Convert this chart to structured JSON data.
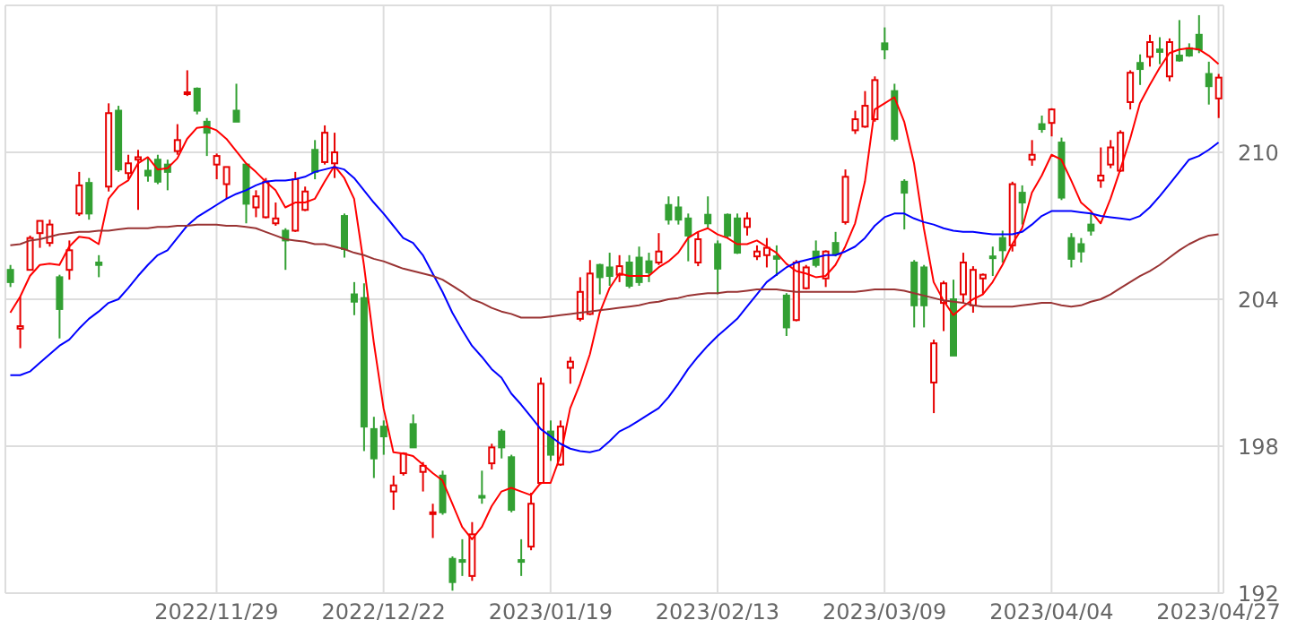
{
  "chart_data": {
    "type": "candlestick",
    "categories": [
      null,
      null,
      null,
      null,
      null,
      null,
      null,
      null,
      null,
      null,
      null,
      null,
      null,
      null,
      null,
      null,
      null,
      null,
      null,
      null,
      null,
      "2022/11/29",
      null,
      null,
      null,
      null,
      null,
      null,
      null,
      null,
      null,
      null,
      null,
      null,
      null,
      null,
      null,
      null,
      "2022/12/22",
      null,
      null,
      null,
      null,
      null,
      null,
      null,
      null,
      null,
      null,
      null,
      null,
      null,
      null,
      null,
      null,
      "2023/01/19",
      null,
      null,
      null,
      null,
      null,
      null,
      null,
      null,
      null,
      null,
      null,
      null,
      null,
      null,
      null,
      null,
      "2023/02/13",
      null,
      null,
      null,
      null,
      null,
      null,
      null,
      null,
      null,
      null,
      null,
      null,
      null,
      null,
      null,
      null,
      "2023/03/09",
      null,
      null,
      null,
      null,
      null,
      null,
      null,
      null,
      null,
      null,
      null,
      null,
      null,
      null,
      null,
      null,
      "2023/04/04",
      null,
      null,
      null,
      null,
      null,
      null,
      null,
      null,
      null,
      null,
      null,
      null,
      null,
      null,
      null,
      null,
      "2023/04/27"
    ],
    "ohlc": [
      [
        205.2,
        205.4,
        204.5,
        204.7
      ],
      [
        202.8,
        204.1,
        202.0,
        202.9
      ],
      [
        205.2,
        206.6,
        205.2,
        206.5
      ],
      [
        206.7,
        207.2,
        206.1,
        207.2
      ],
      [
        206.3,
        207.25,
        206.15,
        207.05
      ],
      [
        204.9,
        205.0,
        202.4,
        203.6
      ],
      [
        205.2,
        206.4,
        204.8,
        206.0
      ],
      [
        207.5,
        209.2,
        207.4,
        208.65
      ],
      [
        208.75,
        208.95,
        207.25,
        207.5
      ],
      [
        205.5,
        205.8,
        204.9,
        205.4
      ],
      [
        208.6,
        212.0,
        208.4,
        211.6
      ],
      [
        211.7,
        211.9,
        209.2,
        209.3
      ],
      [
        209.15,
        209.9,
        208.9,
        209.55
      ],
      [
        209.7,
        210.1,
        207.65,
        209.8
      ],
      [
        209.25,
        209.8,
        208.8,
        209.05
      ],
      [
        209.7,
        209.9,
        208.7,
        208.8
      ],
      [
        209.5,
        209.7,
        208.45,
        209.2
      ],
      [
        210.05,
        211.15,
        209.9,
        210.5
      ],
      [
        212.4,
        213.35,
        212.3,
        212.45
      ],
      [
        212.6,
        212.65,
        211.55,
        211.7
      ],
      [
        211.25,
        211.4,
        209.85,
        210.8
      ],
      [
        209.5,
        209.95,
        208.9,
        209.85
      ],
      [
        208.7,
        209.4,
        208.1,
        209.4
      ],
      [
        211.7,
        212.8,
        211.25,
        211.25
      ],
      [
        209.5,
        209.5,
        207.1,
        207.9
      ],
      [
        207.75,
        208.45,
        207.35,
        208.2
      ],
      [
        207.35,
        208.95,
        207.3,
        208.8
      ],
      [
        207.1,
        207.95,
        207.0,
        207.3
      ],
      [
        206.8,
        206.9,
        205.2,
        206.4
      ],
      [
        206.8,
        209.2,
        206.75,
        208.9
      ],
      [
        207.65,
        208.6,
        207.6,
        208.4
      ],
      [
        210.1,
        210.5,
        208.9,
        209.2
      ],
      [
        209.6,
        211.1,
        209.5,
        210.8
      ],
      [
        209.55,
        210.8,
        208.95,
        210.0
      ],
      [
        207.4,
        207.5,
        205.7,
        206.05
      ],
      [
        204.2,
        204.7,
        203.35,
        203.9
      ],
      [
        204.05,
        204.65,
        197.8,
        198.8
      ],
      [
        198.7,
        199.2,
        196.7,
        197.5
      ],
      [
        198.8,
        199.05,
        197.65,
        198.4
      ],
      [
        196.15,
        196.8,
        195.4,
        196.4
      ],
      [
        196.9,
        197.75,
        196.8,
        197.7
      ],
      [
        198.9,
        199.3,
        197.95,
        197.95
      ],
      [
        196.95,
        197.35,
        196.15,
        197.2
      ],
      [
        195.25,
        195.65,
        194.25,
        195.3
      ],
      [
        196.8,
        197.0,
        195.2,
        195.3
      ],
      [
        193.4,
        193.5,
        192.1,
        192.45
      ],
      [
        193.35,
        194.2,
        192.7,
        193.3
      ],
      [
        192.7,
        194.9,
        192.5,
        194.4
      ],
      [
        195.97,
        197.0,
        195.65,
        195.95
      ],
      [
        197.3,
        198.1,
        197.05,
        197.95
      ],
      [
        198.6,
        198.7,
        197.5,
        197.95
      ],
      [
        197.55,
        197.65,
        195.3,
        195.4
      ],
      [
        193.35,
        194.2,
        192.7,
        193.3
      ],
      [
        193.9,
        196.1,
        193.75,
        195.65
      ],
      [
        196.5,
        200.8,
        196.45,
        200.55
      ],
      [
        198.6,
        199.05,
        197.4,
        197.65
      ],
      [
        197.25,
        199.05,
        197.2,
        198.8
      ],
      [
        201.2,
        201.65,
        200.55,
        201.45
      ],
      [
        203.2,
        204.9,
        203.1,
        204.3
      ],
      [
        203.4,
        205.6,
        203.35,
        205.05
      ],
      [
        205.4,
        205.45,
        204.2,
        204.9
      ],
      [
        205.3,
        205.9,
        204.55,
        204.95
      ],
      [
        205.0,
        205.8,
        204.7,
        205.35
      ],
      [
        205.5,
        205.8,
        204.45,
        204.55
      ],
      [
        205.7,
        206.15,
        204.55,
        204.7
      ],
      [
        205.55,
        205.9,
        204.7,
        205.1
      ],
      [
        205.5,
        206.7,
        205.4,
        205.95
      ],
      [
        207.85,
        208.2,
        207.05,
        207.25
      ],
      [
        207.75,
        208.2,
        207.05,
        207.25
      ],
      [
        207.3,
        207.5,
        205.55,
        206.6
      ],
      [
        205.5,
        206.75,
        205.35,
        206.45
      ],
      [
        207.45,
        208.2,
        206.9,
        207.1
      ],
      [
        206.25,
        206.4,
        204.2,
        205.25
      ],
      [
        207.45,
        207.5,
        206.5,
        206.6
      ],
      [
        207.3,
        207.5,
        205.85,
        205.9
      ],
      [
        206.95,
        207.55,
        206.6,
        207.3
      ],
      [
        205.75,
        206.2,
        205.6,
        205.95
      ],
      [
        205.8,
        206.5,
        205.3,
        206.1
      ],
      [
        205.75,
        206.2,
        204.95,
        205.65
      ],
      [
        204.15,
        204.25,
        202.5,
        202.85
      ],
      [
        203.15,
        205.6,
        203.1,
        205.5
      ],
      [
        204.45,
        205.4,
        204.4,
        205.3
      ],
      [
        205.95,
        206.4,
        205.3,
        205.4
      ],
      [
        204.85,
        206.0,
        204.5,
        205.95
      ],
      [
        206.3,
        206.75,
        205.75,
        205.85
      ],
      [
        207.15,
        209.3,
        207.05,
        209.0
      ],
      [
        210.9,
        211.7,
        210.75,
        211.35
      ],
      [
        211.05,
        212.5,
        211.0,
        211.9
      ],
      [
        211.35,
        213.1,
        211.25,
        212.95
      ],
      [
        214.45,
        215.1,
        213.8,
        214.2
      ],
      [
        212.5,
        212.8,
        210.45,
        210.55
      ],
      [
        208.8,
        208.9,
        206.85,
        208.35
      ],
      [
        205.5,
        205.6,
        202.85,
        203.75
      ],
      [
        205.3,
        205.4,
        202.85,
        203.75
      ],
      [
        200.6,
        202.35,
        199.35,
        202.2
      ],
      [
        203.85,
        204.75,
        202.7,
        204.65
      ],
      [
        204.0,
        204.8,
        201.7,
        201.7
      ],
      [
        204.2,
        205.9,
        203.85,
        205.5
      ],
      [
        203.75,
        205.35,
        203.45,
        205.2
      ],
      [
        204.85,
        205.05,
        204.2,
        205.0
      ],
      [
        205.75,
        206.15,
        204.95,
        205.7
      ],
      [
        206.5,
        206.8,
        205.5,
        206.0
      ],
      [
        206.2,
        208.8,
        205.95,
        208.7
      ],
      [
        208.35,
        208.65,
        207.05,
        207.95
      ],
      [
        209.7,
        210.5,
        209.45,
        209.9
      ],
      [
        211.15,
        211.5,
        210.8,
        210.95
      ],
      [
        211.2,
        211.8,
        210.65,
        211.75
      ],
      [
        210.4,
        210.6,
        208.05,
        208.15
      ],
      [
        206.5,
        206.7,
        205.3,
        205.65
      ],
      [
        206.25,
        206.5,
        205.5,
        205.95
      ],
      [
        207.05,
        207.5,
        206.6,
        206.8
      ],
      [
        208.85,
        210.2,
        208.55,
        209.05
      ],
      [
        209.5,
        210.5,
        209.35,
        210.2
      ],
      [
        209.25,
        210.9,
        209.2,
        210.8
      ],
      [
        212.05,
        213.35,
        211.75,
        213.25
      ],
      [
        213.65,
        214.0,
        212.75,
        213.4
      ],
      [
        213.9,
        214.8,
        213.5,
        214.5
      ],
      [
        214.2,
        214.7,
        213.6,
        214.1
      ],
      [
        213.1,
        214.65,
        212.9,
        214.5
      ],
      [
        213.95,
        215.4,
        213.7,
        213.75
      ],
      [
        214.25,
        214.45,
        213.9,
        213.95
      ],
      [
        214.8,
        215.6,
        214.05,
        214.2
      ],
      [
        213.2,
        213.7,
        211.95,
        212.7
      ],
      [
        212.2,
        213.2,
        211.4,
        213.05
      ]
    ],
    "colors": [
      "#33a033",
      "#e60000",
      "#e60000",
      "#e60000",
      "#e60000",
      "#33a033",
      "#e60000",
      "#e60000",
      "#33a033",
      "#33a033",
      "#e60000",
      "#33a033",
      "#e60000",
      "#e60000",
      "#33a033",
      "#33a033",
      "#33a033",
      "#e60000",
      "#e60000",
      "#33a033",
      "#33a033",
      "#e60000",
      "#e60000",
      "#33a033",
      "#33a033",
      "#e60000",
      "#e60000",
      "#e60000",
      "#33a033",
      "#e60000",
      "#e60000",
      "#33a033",
      "#e60000",
      "#e60000",
      "#33a033",
      "#33a033",
      "#33a033",
      "#33a033",
      "#33a033",
      "#e60000",
      "#e60000",
      "#33a033",
      "#e60000",
      "#e60000",
      "#33a033",
      "#33a033",
      "#33a033",
      "#e60000",
      "#33a033",
      "#e60000",
      "#33a033",
      "#33a033",
      "#33a033",
      "#e60000",
      "#e60000",
      "#33a033",
      "#e60000",
      "#e60000",
      "#e60000",
      "#e60000",
      "#33a033",
      "#33a033",
      "#e60000",
      "#33a033",
      "#33a033",
      "#33a033",
      "#e60000",
      "#33a033",
      "#33a033",
      "#33a033",
      "#e60000",
      "#33a033",
      "#33a033",
      "#33a033",
      "#33a033",
      "#e60000",
      "#e60000",
      "#e60000",
      "#33a033",
      "#33a033",
      "#e60000",
      "#e60000",
      "#33a033",
      "#e60000",
      "#33a033",
      "#e60000",
      "#e60000",
      "#e60000",
      "#e60000",
      "#33a033",
      "#33a033",
      "#33a033",
      "#33a033",
      "#33a033",
      "#e60000",
      "#e60000",
      "#33a033",
      "#e60000",
      "#e60000",
      "#e60000",
      "#33a033",
      "#33a033",
      "#e60000",
      "#33a033",
      "#e60000",
      "#33a033",
      "#e60000",
      "#33a033",
      "#33a033",
      "#33a033",
      "#33a033",
      "#e60000",
      "#e60000",
      "#e60000",
      "#e60000",
      "#33a033",
      "#e60000",
      "#33a033",
      "#e60000",
      "#33a033",
      "#33a033",
      "#33a033",
      "#33a033",
      "#e60000"
    ],
    "series": [
      {
        "type": "line",
        "color": "#ff0000",
        "values": [
          203.45,
          204.1,
          204.95,
          205.4,
          205.45,
          205.4,
          206.15,
          206.55,
          206.5,
          206.25,
          208.1,
          208.6,
          208.85,
          209.55,
          209.8,
          209.3,
          209.35,
          209.75,
          210.55,
          211.0,
          211.05,
          210.9,
          210.55,
          210.05,
          209.55,
          209.2,
          208.8,
          208.45,
          207.75,
          207.95,
          207.95,
          208.1,
          208.8,
          209.45,
          208.95,
          208.1,
          205.4,
          202.25,
          199.55,
          197.75,
          197.7,
          197.6,
          197.25,
          196.9,
          196.6,
          195.65,
          194.7,
          194.2,
          194.7,
          195.55,
          196.15,
          196.3,
          196.15,
          196.0,
          196.5,
          196.5,
          197.6,
          199.55,
          200.55,
          201.75,
          203.45,
          204.45,
          205.05,
          204.95,
          204.95,
          204.95,
          205.3,
          205.55,
          205.9,
          206.5,
          206.75,
          206.9,
          206.65,
          206.5,
          206.25,
          206.25,
          206.4,
          206.15,
          205.9,
          205.45,
          205.15,
          205.05,
          204.9,
          204.95,
          205.4,
          206.15,
          207.1,
          208.8,
          211.75,
          212.0,
          212.25,
          211.25,
          209.55,
          206.9,
          204.7,
          203.95,
          203.35,
          203.7,
          204.0,
          204.2,
          204.7,
          205.4,
          206.25,
          206.9,
          208.35,
          209.05,
          209.9,
          209.7,
          208.85,
          207.95,
          207.6,
          207.1,
          208.1,
          209.3,
          210.55,
          212.0,
          212.75,
          213.45,
          214.05,
          214.2,
          214.25,
          214.2,
          213.95,
          213.6
        ]
      },
      {
        "type": "line",
        "color": "#0000ff",
        "values": [
          200.9,
          200.9,
          201.05,
          201.4,
          201.75,
          202.1,
          202.35,
          202.8,
          203.2,
          203.5,
          203.85,
          204.0,
          204.45,
          204.95,
          205.4,
          205.8,
          206.0,
          206.5,
          207.0,
          207.35,
          207.6,
          207.85,
          208.1,
          208.3,
          208.45,
          208.65,
          208.8,
          208.85,
          208.85,
          208.9,
          209.0,
          209.2,
          209.3,
          209.4,
          209.3,
          208.95,
          208.45,
          207.95,
          207.5,
          207.0,
          206.5,
          206.3,
          205.8,
          205.05,
          204.3,
          203.45,
          202.75,
          202.1,
          201.65,
          201.15,
          200.8,
          200.15,
          199.7,
          199.2,
          198.7,
          198.4,
          198.1,
          197.9,
          197.8,
          197.75,
          197.85,
          198.2,
          198.6,
          198.8,
          199.05,
          199.3,
          199.55,
          200.0,
          200.55,
          201.15,
          201.65,
          202.1,
          202.5,
          202.85,
          203.2,
          203.7,
          204.2,
          204.7,
          205.0,
          205.3,
          205.5,
          205.6,
          205.7,
          205.8,
          205.8,
          205.95,
          206.15,
          206.5,
          207.0,
          207.35,
          207.5,
          207.5,
          207.3,
          207.15,
          207.05,
          206.9,
          206.8,
          206.75,
          206.75,
          206.7,
          206.65,
          206.65,
          206.65,
          206.75,
          207.05,
          207.4,
          207.6,
          207.6,
          207.6,
          207.55,
          207.5,
          207.4,
          207.35,
          207.3,
          207.25,
          207.4,
          207.75,
          208.2,
          208.7,
          209.2,
          209.7,
          209.85,
          210.1,
          210.4
        ]
      },
      {
        "type": "line",
        "color": "#993333",
        "values": [
          206.2,
          206.25,
          206.4,
          206.45,
          206.55,
          206.65,
          206.7,
          206.75,
          206.75,
          206.8,
          206.8,
          206.85,
          206.9,
          206.9,
          206.9,
          206.95,
          206.95,
          207.0,
          207.0,
          207.05,
          207.05,
          207.05,
          207.0,
          207.0,
          206.95,
          206.9,
          206.75,
          206.6,
          206.45,
          206.4,
          206.35,
          206.25,
          206.25,
          206.15,
          206.05,
          205.9,
          205.8,
          205.65,
          205.55,
          205.4,
          205.25,
          205.15,
          205.05,
          204.95,
          204.8,
          204.55,
          204.3,
          204.0,
          203.85,
          203.65,
          203.5,
          203.4,
          203.25,
          203.25,
          203.25,
          203.3,
          203.35,
          203.4,
          203.45,
          203.5,
          203.55,
          203.6,
          203.65,
          203.7,
          203.75,
          203.85,
          203.9,
          204.0,
          204.05,
          204.15,
          204.2,
          204.25,
          204.25,
          204.3,
          204.3,
          204.35,
          204.4,
          204.4,
          204.4,
          204.35,
          204.3,
          204.3,
          204.3,
          204.3,
          204.3,
          204.3,
          204.3,
          204.35,
          204.4,
          204.4,
          204.4,
          204.35,
          204.25,
          204.15,
          204.05,
          203.95,
          203.9,
          203.85,
          203.75,
          203.7,
          203.7,
          203.7,
          203.7,
          203.75,
          203.8,
          203.85,
          203.85,
          203.75,
          203.7,
          203.75,
          203.9,
          204.0,
          204.2,
          204.45,
          204.7,
          204.95,
          205.15,
          205.4,
          205.7,
          206.0,
          206.25,
          206.45,
          206.6,
          206.65
        ]
      }
    ],
    "ylim": [
      192,
      216
    ],
    "yticks": [
      192,
      198,
      204,
      210
    ],
    "grid": true
  }
}
